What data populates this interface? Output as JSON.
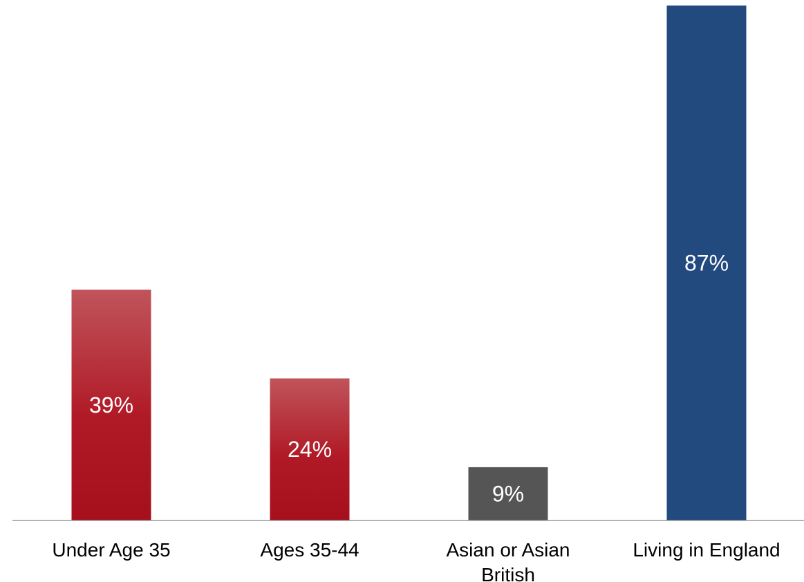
{
  "chart_data": {
    "type": "bar",
    "categories": [
      [
        "Under Age 35"
      ],
      [
        "Ages 35-44"
      ],
      [
        "Asian or Asian",
        "British"
      ],
      [
        "Living in England"
      ]
    ],
    "values": [
      39,
      24,
      9,
      87
    ],
    "data_labels": [
      "39%",
      "24%",
      "9%",
      "87%"
    ],
    "colors": [
      "#b01a26",
      "#b01a26",
      "#555555",
      "#224a7e"
    ],
    "gradient_top": [
      "#c0545b",
      "#c0545b",
      null,
      null
    ],
    "ylim": [
      0,
      87
    ],
    "grid": false,
    "title": "",
    "xlabel": "",
    "ylabel": ""
  }
}
